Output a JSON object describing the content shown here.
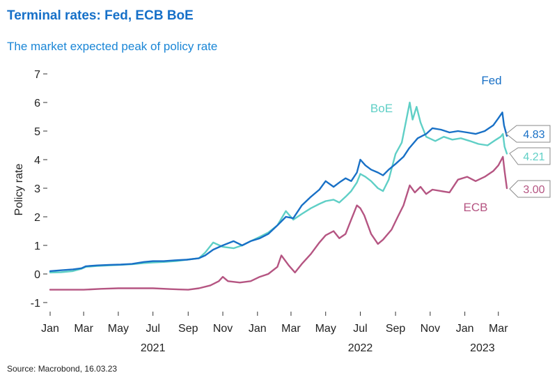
{
  "header": {
    "title": "Terminal rates: Fed, ECB BoE",
    "subtitle": "The market expected peak of policy rate"
  },
  "footer": {
    "source": "Source: Macrobond, 16.03.23"
  },
  "colors": {
    "fed": "#1870c6",
    "boe": "#5fcfc6",
    "ecb": "#b55582",
    "title": "#1670c8"
  },
  "chart_data": {
    "type": "line",
    "title": "Terminal rates: Fed, ECB BoE",
    "subtitle": "The market expected peak of policy rate",
    "ylabel": "Policy rate",
    "xlabel": "",
    "ylim": [
      -1,
      7
    ],
    "yticks": [
      -1,
      0,
      1,
      2,
      3,
      4,
      5,
      6,
      7
    ],
    "xlim": [
      "2021-01-01",
      "2023-03-16"
    ],
    "x_ticks": [
      {
        "date": "2021-01-01",
        "label": "Jan"
      },
      {
        "date": "2021-03-01",
        "label": "Mar"
      },
      {
        "date": "2021-05-01",
        "label": "May"
      },
      {
        "date": "2021-07-01",
        "label": "Jul"
      },
      {
        "date": "2021-09-01",
        "label": "Sep"
      },
      {
        "date": "2021-11-01",
        "label": "Nov"
      },
      {
        "date": "2022-01-01",
        "label": "Jan"
      },
      {
        "date": "2022-03-01",
        "label": "Mar"
      },
      {
        "date": "2022-05-01",
        "label": "May"
      },
      {
        "date": "2022-07-01",
        "label": "Jul"
      },
      {
        "date": "2022-09-01",
        "label": "Sep"
      },
      {
        "date": "2022-11-01",
        "label": "Nov"
      },
      {
        "date": "2023-01-01",
        "label": "Jan"
      },
      {
        "date": "2023-03-01",
        "label": "Mar"
      }
    ],
    "year_labels": [
      {
        "date": "2021-07-01",
        "label": "2021"
      },
      {
        "date": "2022-07-01",
        "label": "2022"
      },
      {
        "date": "2023-02-01",
        "label": "2023"
      }
    ],
    "grid": false,
    "legend": "inline labels",
    "series": [
      {
        "name": "Fed",
        "color": "#1870c6",
        "last_value": "4.83",
        "points": [
          [
            "2021-01-01",
            0.1
          ],
          [
            "2021-01-20",
            0.13
          ],
          [
            "2021-02-10",
            0.16
          ],
          [
            "2021-02-25",
            0.2
          ],
          [
            "2021-03-05",
            0.27
          ],
          [
            "2021-03-25",
            0.3
          ],
          [
            "2021-04-15",
            0.32
          ],
          [
            "2021-05-05",
            0.33
          ],
          [
            "2021-05-25",
            0.35
          ],
          [
            "2021-06-15",
            0.42
          ],
          [
            "2021-07-01",
            0.45
          ],
          [
            "2021-07-20",
            0.45
          ],
          [
            "2021-08-10",
            0.48
          ],
          [
            "2021-08-30",
            0.5
          ],
          [
            "2021-09-20",
            0.55
          ],
          [
            "2021-10-01",
            0.65
          ],
          [
            "2021-10-15",
            0.85
          ],
          [
            "2021-11-01",
            1.0
          ],
          [
            "2021-11-20",
            1.15
          ],
          [
            "2021-12-05",
            1.0
          ],
          [
            "2021-12-20",
            1.15
          ],
          [
            "2022-01-05",
            1.25
          ],
          [
            "2022-01-20",
            1.4
          ],
          [
            "2022-02-05",
            1.7
          ],
          [
            "2022-02-20",
            2.0
          ],
          [
            "2022-03-05",
            1.95
          ],
          [
            "2022-03-20",
            2.4
          ],
          [
            "2022-04-05",
            2.7
          ],
          [
            "2022-04-20",
            2.95
          ],
          [
            "2022-05-01",
            3.25
          ],
          [
            "2022-05-15",
            3.05
          ],
          [
            "2022-05-25",
            3.2
          ],
          [
            "2022-06-05",
            3.35
          ],
          [
            "2022-06-15",
            3.25
          ],
          [
            "2022-06-25",
            3.55
          ],
          [
            "2022-07-01",
            4.0
          ],
          [
            "2022-07-10",
            3.8
          ],
          [
            "2022-07-20",
            3.65
          ],
          [
            "2022-08-01",
            3.55
          ],
          [
            "2022-08-10",
            3.45
          ],
          [
            "2022-08-20",
            3.65
          ],
          [
            "2022-09-01",
            3.85
          ],
          [
            "2022-09-15",
            4.1
          ],
          [
            "2022-09-25",
            4.4
          ],
          [
            "2022-10-10",
            4.75
          ],
          [
            "2022-10-25",
            4.9
          ],
          [
            "2022-11-05",
            5.1
          ],
          [
            "2022-11-20",
            5.05
          ],
          [
            "2022-12-05",
            4.95
          ],
          [
            "2022-12-20",
            5.0
          ],
          [
            "2023-01-05",
            4.95
          ],
          [
            "2023-01-20",
            4.9
          ],
          [
            "2023-02-05",
            5.0
          ],
          [
            "2023-02-20",
            5.2
          ],
          [
            "2023-03-01",
            5.45
          ],
          [
            "2023-03-08",
            5.65
          ],
          [
            "2023-03-11",
            5.2
          ],
          [
            "2023-03-16",
            4.83
          ]
        ]
      },
      {
        "name": "BoE",
        "color": "#5fcfc6",
        "last_value": "4.21",
        "points": [
          [
            "2021-01-01",
            0.05
          ],
          [
            "2021-01-20",
            0.06
          ],
          [
            "2021-02-10",
            0.1
          ],
          [
            "2021-02-25",
            0.18
          ],
          [
            "2021-03-05",
            0.25
          ],
          [
            "2021-03-25",
            0.28
          ],
          [
            "2021-04-15",
            0.3
          ],
          [
            "2021-05-05",
            0.32
          ],
          [
            "2021-05-25",
            0.34
          ],
          [
            "2021-06-15",
            0.38
          ],
          [
            "2021-07-01",
            0.4
          ],
          [
            "2021-07-20",
            0.42
          ],
          [
            "2021-08-10",
            0.45
          ],
          [
            "2021-08-30",
            0.5
          ],
          [
            "2021-09-20",
            0.55
          ],
          [
            "2021-10-01",
            0.75
          ],
          [
            "2021-10-15",
            1.1
          ],
          [
            "2021-11-01",
            0.95
          ],
          [
            "2021-11-20",
            0.9
          ],
          [
            "2021-12-05",
            1.0
          ],
          [
            "2021-12-20",
            1.15
          ],
          [
            "2022-01-05",
            1.3
          ],
          [
            "2022-01-20",
            1.45
          ],
          [
            "2022-02-05",
            1.7
          ],
          [
            "2022-02-20",
            2.2
          ],
          [
            "2022-03-05",
            1.9
          ],
          [
            "2022-03-20",
            2.1
          ],
          [
            "2022-04-05",
            2.3
          ],
          [
            "2022-04-20",
            2.45
          ],
          [
            "2022-05-01",
            2.55
          ],
          [
            "2022-05-15",
            2.6
          ],
          [
            "2022-05-25",
            2.5
          ],
          [
            "2022-06-05",
            2.7
          ],
          [
            "2022-06-15",
            2.9
          ],
          [
            "2022-06-25",
            3.2
          ],
          [
            "2022-07-01",
            3.5
          ],
          [
            "2022-07-10",
            3.4
          ],
          [
            "2022-07-20",
            3.25
          ],
          [
            "2022-08-01",
            3.0
          ],
          [
            "2022-08-10",
            2.9
          ],
          [
            "2022-08-20",
            3.3
          ],
          [
            "2022-09-01",
            4.2
          ],
          [
            "2022-09-12",
            4.6
          ],
          [
            "2022-09-26",
            6.0
          ],
          [
            "2022-10-01",
            5.4
          ],
          [
            "2022-10-08",
            5.85
          ],
          [
            "2022-10-15",
            5.3
          ],
          [
            "2022-10-25",
            4.8
          ],
          [
            "2022-11-10",
            4.65
          ],
          [
            "2022-11-25",
            4.8
          ],
          [
            "2022-12-10",
            4.7
          ],
          [
            "2022-12-25",
            4.75
          ],
          [
            "2023-01-10",
            4.65
          ],
          [
            "2023-01-25",
            4.55
          ],
          [
            "2023-02-10",
            4.5
          ],
          [
            "2023-02-25",
            4.7
          ],
          [
            "2023-03-05",
            4.8
          ],
          [
            "2023-03-09",
            4.9
          ],
          [
            "2023-03-12",
            4.45
          ],
          [
            "2023-03-16",
            4.21
          ]
        ]
      },
      {
        "name": "ECB",
        "color": "#b55582",
        "last_value": "3.00",
        "points": [
          [
            "2021-01-01",
            -0.55
          ],
          [
            "2021-02-01",
            -0.55
          ],
          [
            "2021-03-01",
            -0.55
          ],
          [
            "2021-04-01",
            -0.52
          ],
          [
            "2021-05-01",
            -0.5
          ],
          [
            "2021-06-01",
            -0.5
          ],
          [
            "2021-07-01",
            -0.5
          ],
          [
            "2021-08-01",
            -0.53
          ],
          [
            "2021-09-01",
            -0.55
          ],
          [
            "2021-09-20",
            -0.5
          ],
          [
            "2021-10-10",
            -0.4
          ],
          [
            "2021-10-25",
            -0.25
          ],
          [
            "2021-11-01",
            -0.1
          ],
          [
            "2021-11-10",
            -0.25
          ],
          [
            "2021-12-01",
            -0.3
          ],
          [
            "2021-12-20",
            -0.25
          ],
          [
            "2022-01-05",
            -0.1
          ],
          [
            "2022-01-20",
            0.0
          ],
          [
            "2022-02-05",
            0.25
          ],
          [
            "2022-02-12",
            0.65
          ],
          [
            "2022-02-25",
            0.3
          ],
          [
            "2022-03-08",
            0.05
          ],
          [
            "2022-03-20",
            0.35
          ],
          [
            "2022-04-05",
            0.7
          ],
          [
            "2022-04-20",
            1.1
          ],
          [
            "2022-05-01",
            1.35
          ],
          [
            "2022-05-15",
            1.5
          ],
          [
            "2022-05-25",
            1.25
          ],
          [
            "2022-06-05",
            1.4
          ],
          [
            "2022-06-15",
            1.9
          ],
          [
            "2022-06-25",
            2.4
          ],
          [
            "2022-07-01",
            2.3
          ],
          [
            "2022-07-08",
            2.05
          ],
          [
            "2022-07-20",
            1.4
          ],
          [
            "2022-08-01",
            1.05
          ],
          [
            "2022-08-10",
            1.2
          ],
          [
            "2022-08-25",
            1.55
          ],
          [
            "2022-09-05",
            2.0
          ],
          [
            "2022-09-15",
            2.4
          ],
          [
            "2022-09-26",
            3.1
          ],
          [
            "2022-10-05",
            2.85
          ],
          [
            "2022-10-15",
            3.05
          ],
          [
            "2022-10-25",
            2.8
          ],
          [
            "2022-11-05",
            2.95
          ],
          [
            "2022-11-20",
            2.9
          ],
          [
            "2022-12-05",
            2.85
          ],
          [
            "2022-12-20",
            3.3
          ],
          [
            "2023-01-05",
            3.4
          ],
          [
            "2023-01-20",
            3.25
          ],
          [
            "2023-02-05",
            3.4
          ],
          [
            "2023-02-20",
            3.6
          ],
          [
            "2023-03-01",
            3.8
          ],
          [
            "2023-03-09",
            4.1
          ],
          [
            "2023-03-12",
            3.6
          ],
          [
            "2023-03-16",
            3.0
          ]
        ]
      }
    ],
    "annotations": [
      {
        "text": "Fed",
        "series": "Fed"
      },
      {
        "text": "BoE",
        "series": "BoE"
      },
      {
        "text": "ECB",
        "series": "ECB"
      }
    ]
  }
}
